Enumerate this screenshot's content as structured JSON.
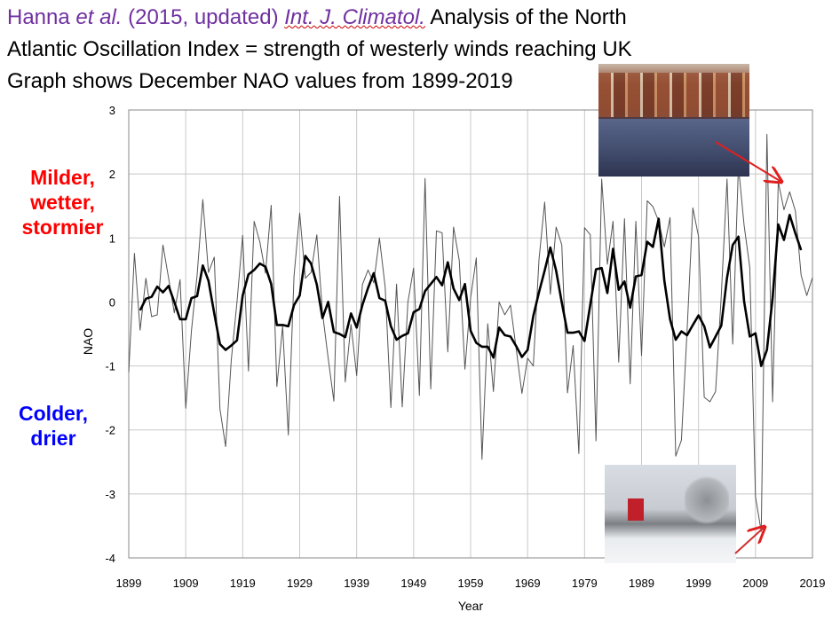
{
  "title": {
    "line1_authors": "Hanna",
    "line1_etal": "et al.",
    "line1_year": "(2015, updated)",
    "line1_journal": "Int. J. Climatol.",
    "line1_rest": "Analysis of the North",
    "line2": "Atlantic Oscillation Index = strength of westerly winds reaching UK",
    "line3": "Graph shows December NAO values from 1899-2019"
  },
  "annotations": {
    "milder": [
      "Milder,",
      "wetter,",
      "stormier"
    ],
    "colder": [
      "Colder,",
      "drier"
    ]
  },
  "colors": {
    "title_purple": "#7030A0",
    "milder": "#FF0000",
    "colder": "#0000FF",
    "arrow": "#E02020"
  },
  "images": {
    "top": "flooded-town-photo",
    "bottom": "snowy-street-photo"
  },
  "chart_data": {
    "type": "line",
    "xlabel": "Year",
    "ylabel": "NAO",
    "xlim": [
      1899,
      2019
    ],
    "ylim": [
      -4,
      3
    ],
    "grid": true,
    "x_ticks": [
      "1899",
      "1909",
      "1919",
      "1929",
      "1939",
      "1949",
      "1959",
      "1969",
      "1979",
      "1989",
      "1999",
      "2009",
      "2019"
    ],
    "y_ticks": [
      "3",
      "2",
      "1",
      "0",
      "-1",
      "-2",
      "-3",
      "-4"
    ],
    "x_start": 1899,
    "series": [
      {
        "style": "thin-grey",
        "values": [
          -1.1,
          0.76,
          -0.44,
          0.37,
          -0.23,
          -0.2,
          0.89,
          0.37,
          -0.17,
          0.35,
          -1.66,
          -0.45,
          0.42,
          1.6,
          0.46,
          0.7,
          -1.67,
          -2.26,
          -0.9,
          0.0,
          1.04,
          -1.08,
          1.26,
          0.94,
          0.45,
          1.51,
          -1.32,
          -0.38,
          -2.08,
          0.4,
          1.39,
          0.37,
          0.46,
          1.05,
          -0.17,
          -0.88,
          -1.55,
          1.65,
          -1.25,
          -0.35,
          -1.15,
          0.27,
          0.5,
          0.3,
          1.0,
          0.23,
          -1.65,
          0.28,
          -1.64,
          0.0,
          0.53,
          -1.46,
          1.93,
          -1.36,
          1.11,
          1.08,
          -0.78,
          1.17,
          0.65,
          -1.05,
          0.06,
          0.69,
          -2.46,
          -0.34,
          -1.4,
          0.0,
          -0.2,
          -0.05,
          -0.73,
          -1.43,
          -0.88,
          -1.0,
          0.66,
          1.56,
          0.12,
          1.17,
          0.89,
          -1.42,
          -0.68,
          -2.37,
          1.16,
          1.05,
          -2.17,
          1.92,
          0.59,
          1.26,
          -0.94,
          1.3,
          -1.28,
          1.26,
          -0.84,
          1.58,
          1.49,
          1.26,
          0.86,
          1.32,
          -2.41,
          -2.16,
          -0.45,
          1.47,
          1.02,
          -1.49,
          -1.56,
          -1.4,
          0.1,
          1.92,
          -0.66,
          2.13,
          1.2,
          0.54,
          -3.04,
          -3.59,
          2.62,
          -1.56,
          1.88,
          1.44,
          1.72,
          1.42,
          0.42,
          0.1,
          0.38
        ]
      },
      {
        "style": "thick-black-smoothed",
        "values": [
          null,
          null,
          -0.13,
          0.05,
          0.08,
          0.24,
          0.15,
          0.25,
          0.0,
          -0.27,
          -0.27,
          0.06,
          0.09,
          0.57,
          0.33,
          -0.18,
          -0.66,
          -0.75,
          -0.68,
          -0.6,
          0.1,
          0.43,
          0.5,
          0.6,
          0.55,
          0.28,
          -0.36,
          -0.36,
          -0.38,
          -0.05,
          0.1,
          0.72,
          0.6,
          0.27,
          -0.25,
          0.0,
          -0.47,
          -0.5,
          -0.55,
          -0.18,
          -0.4,
          -0.05,
          0.22,
          0.45,
          0.06,
          0.02,
          -0.38,
          -0.59,
          -0.53,
          -0.49,
          -0.16,
          -0.11,
          0.17,
          0.28,
          0.39,
          0.26,
          0.62,
          0.21,
          0.03,
          0.28,
          -0.45,
          -0.64,
          -0.7,
          -0.7,
          -0.87,
          -0.4,
          -0.52,
          -0.54,
          -0.69,
          -0.86,
          -0.75,
          -0.22,
          0.15,
          0.49,
          0.85,
          0.49,
          -0.01,
          -0.48,
          -0.48,
          -0.46,
          -0.61,
          -0.04,
          0.51,
          0.53,
          0.14,
          0.83,
          0.19,
          0.32,
          -0.09,
          0.4,
          0.42,
          0.94,
          0.86,
          1.3,
          0.33,
          -0.27,
          -0.59,
          -0.46,
          -0.52,
          -0.36,
          -0.21,
          -0.38,
          -0.71,
          -0.54,
          -0.37,
          0.38,
          0.89,
          1.02,
          0.01,
          -0.54,
          -0.49,
          -1.0,
          -0.75,
          0.06,
          1.21,
          0.97,
          1.36,
          1.07,
          0.81,
          null,
          null
        ]
      }
    ]
  }
}
